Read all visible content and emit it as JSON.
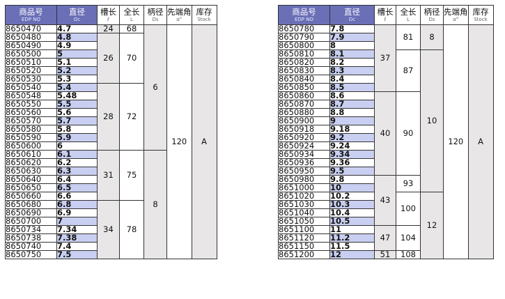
{
  "headers": {
    "edp": {
      "main": "商品号",
      "sub": "EDP NO"
    },
    "dia": {
      "main": "直径",
      "sub": "Dc"
    },
    "flute": {
      "main": "槽长",
      "sub": "ℓ"
    },
    "length": {
      "main": "全长",
      "sub": "L"
    },
    "shank": {
      "main": "柄径",
      "sub": "Ds"
    },
    "angle": {
      "main": "先端角",
      "sub": "α°"
    },
    "stock": {
      "main": "库存",
      "sub": "Stock"
    }
  },
  "left_table": {
    "rows": [
      {
        "edp": "8650470",
        "dia": "4.7"
      },
      {
        "edp": "8650480",
        "dia": "4.8"
      },
      {
        "edp": "8650490",
        "dia": "4.9"
      },
      {
        "edp": "8650500",
        "dia": "5"
      },
      {
        "edp": "8650510",
        "dia": "5.1"
      },
      {
        "edp": "8650520",
        "dia": "5.2"
      },
      {
        "edp": "8650530",
        "dia": "5.3"
      },
      {
        "edp": "8650540",
        "dia": "5.4"
      },
      {
        "edp": "8650548",
        "dia": "5.48"
      },
      {
        "edp": "8650550",
        "dia": "5.5"
      },
      {
        "edp": "8650560",
        "dia": "5.6"
      },
      {
        "edp": "8650570",
        "dia": "5.7"
      },
      {
        "edp": "8650580",
        "dia": "5.8"
      },
      {
        "edp": "8650590",
        "dia": "5.9"
      },
      {
        "edp": "8650600",
        "dia": "6"
      },
      {
        "edp": "8650610",
        "dia": "6.1"
      },
      {
        "edp": "8650620",
        "dia": "6.2"
      },
      {
        "edp": "8650630",
        "dia": "6.3"
      },
      {
        "edp": "8650640",
        "dia": "6.4"
      },
      {
        "edp": "8650650",
        "dia": "6.5"
      },
      {
        "edp": "8650660",
        "dia": "6.6"
      },
      {
        "edp": "8650680",
        "dia": "6.8"
      },
      {
        "edp": "8650690",
        "dia": "6.9"
      },
      {
        "edp": "8650700",
        "dia": "7"
      },
      {
        "edp": "8650734",
        "dia": "7.34"
      },
      {
        "edp": "8650738",
        "dia": "7.38"
      },
      {
        "edp": "8650740",
        "dia": "7.4"
      },
      {
        "edp": "8650750",
        "dia": "7.5"
      }
    ],
    "flute": [
      {
        "value": "24",
        "rows": 1
      },
      {
        "value": "26",
        "rows": 6
      },
      {
        "value": "28",
        "rows": 8
      },
      {
        "value": "31",
        "rows": 6
      },
      {
        "value": "34",
        "rows": 7
      }
    ],
    "length": [
      {
        "value": "68",
        "rows": 1
      },
      {
        "value": "70",
        "rows": 6
      },
      {
        "value": "72",
        "rows": 8
      },
      {
        "value": "75",
        "rows": 6
      },
      {
        "value": "78",
        "rows": 7
      }
    ],
    "shank": [
      {
        "value": "6",
        "rows": 15
      },
      {
        "value": "8",
        "rows": 13
      }
    ],
    "angle": "120",
    "stock": "A"
  },
  "right_table": {
    "rows": [
      {
        "edp": "8650780",
        "dia": "7.8"
      },
      {
        "edp": "8650790",
        "dia": "7.9"
      },
      {
        "edp": "8650800",
        "dia": "8"
      },
      {
        "edp": "8650810",
        "dia": "8.1"
      },
      {
        "edp": "8650820",
        "dia": "8.2"
      },
      {
        "edp": "8650830",
        "dia": "8.3"
      },
      {
        "edp": "8650840",
        "dia": "8.4"
      },
      {
        "edp": "8650850",
        "dia": "8.5"
      },
      {
        "edp": "8650860",
        "dia": "8.6"
      },
      {
        "edp": "8650870",
        "dia": "8.7"
      },
      {
        "edp": "8650880",
        "dia": "8.8"
      },
      {
        "edp": "8650900",
        "dia": "9"
      },
      {
        "edp": "8650918",
        "dia": "9.18"
      },
      {
        "edp": "8650920",
        "dia": "9.2"
      },
      {
        "edp": "8650924",
        "dia": "9.24"
      },
      {
        "edp": "8650934",
        "dia": "9.34"
      },
      {
        "edp": "8650936",
        "dia": "9.36"
      },
      {
        "edp": "8650950",
        "dia": "9.5"
      },
      {
        "edp": "8650980",
        "dia": "9.8"
      },
      {
        "edp": "8651000",
        "dia": "10"
      },
      {
        "edp": "8651020",
        "dia": "10.2"
      },
      {
        "edp": "8651030",
        "dia": "10.3"
      },
      {
        "edp": "8651040",
        "dia": "10.4"
      },
      {
        "edp": "8651050",
        "dia": "10.5"
      },
      {
        "edp": "8651100",
        "dia": "11"
      },
      {
        "edp": "8651120",
        "dia": "11.2"
      },
      {
        "edp": "8651150",
        "dia": "11.5"
      },
      {
        "edp": "8651200",
        "dia": "12"
      }
    ],
    "flute": [
      {
        "value": "37",
        "rows": 8
      },
      {
        "value": "40",
        "rows": 10
      },
      {
        "value": "43",
        "rows": 6
      },
      {
        "value": "47",
        "rows": 3
      },
      {
        "value": "51",
        "rows": 1
      }
    ],
    "length": [
      {
        "value": "81",
        "rows": 3
      },
      {
        "value": "87",
        "rows": 5
      },
      {
        "value": "90",
        "rows": 10
      },
      {
        "value": "93",
        "rows": 2
      },
      {
        "value": "100",
        "rows": 4
      },
      {
        "value": "104",
        "rows": 3
      },
      {
        "value": "108",
        "rows": 1
      }
    ],
    "shank": [
      {
        "value": "8",
        "rows": 3
      },
      {
        "value": "10",
        "rows": 17
      },
      {
        "value": "12",
        "rows": 8
      }
    ],
    "angle": "120",
    "stock": "A"
  }
}
